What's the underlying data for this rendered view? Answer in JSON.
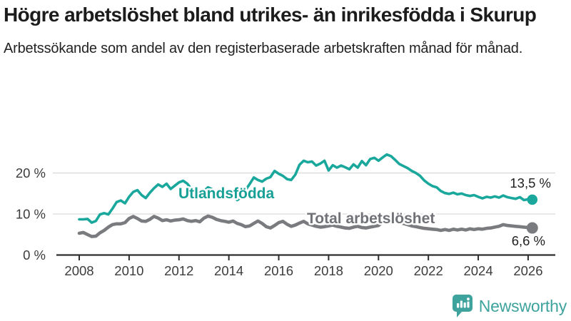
{
  "header": {
    "title": "Högre arbetslöshet bland utrikes- än inrikesfödda i Skurup",
    "subtitle": "Arbetssökande som andel av den registerbaserade arbetskraften månad för månad."
  },
  "chart_data": {
    "type": "line",
    "unit": "%",
    "grid": true,
    "legend": "inline-labels",
    "x_axis": {
      "start": 2008,
      "step_years": 0.166667,
      "end": 2026.17,
      "ticks": [
        {
          "year": 2008,
          "label": "2008"
        },
        {
          "year": 2010,
          "label": "2010"
        },
        {
          "year": 2012,
          "label": "2012"
        },
        {
          "year": 2014,
          "label": "2014"
        },
        {
          "year": 2016,
          "label": "2016"
        },
        {
          "year": 2018,
          "label": "2018"
        },
        {
          "year": 2020,
          "label": "2020"
        },
        {
          "year": 2022,
          "label": "2022"
        },
        {
          "year": 2024,
          "label": "2024"
        },
        {
          "year": 2026,
          "label": "2026"
        }
      ]
    },
    "y_axis": {
      "min": 0,
      "max": 25,
      "ticks": [
        {
          "value": 0,
          "label": "0 %"
        },
        {
          "value": 10,
          "label": "10 %"
        },
        {
          "value": 20,
          "label": "20 %"
        }
      ]
    },
    "colors": {
      "grid": "#d9d9d9",
      "axis": "#2d2d2d",
      "tick_text": "#3c3c3c",
      "value_text": "#1f1f1f"
    },
    "series": [
      {
        "name": "Utlandsfödda",
        "color": "#1aa79c",
        "label_color": "#17a096",
        "end_value": 13.5,
        "end_label": "13,5 %",
        "values": [
          8.7,
          8.7,
          8.8,
          7.9,
          8.3,
          9.9,
          10.2,
          9.9,
          11.3,
          12.9,
          13.3,
          12.6,
          14.2,
          15.4,
          15.8,
          14.6,
          13.9,
          15.2,
          16.3,
          17.2,
          16.6,
          17.4,
          16.1,
          16.9,
          17.7,
          18.1,
          17.4,
          16.1,
          14.9,
          14.6,
          15.6,
          16.5,
          16.0,
          15.2,
          15.0,
          14.6,
          15.3,
          14.4,
          13.4,
          14.1,
          15.8,
          17.3,
          18.9,
          18.3,
          17.9,
          18.6,
          19.0,
          20.5,
          19.8,
          19.3,
          18.5,
          18.3,
          19.6,
          22.0,
          23.0,
          22.6,
          22.8,
          21.8,
          22.3,
          23.0,
          20.6,
          21.9,
          21.3,
          21.8,
          21.4,
          20.9,
          22.1,
          21.3,
          22.9,
          21.9,
          23.4,
          23.7,
          23.0,
          23.8,
          24.5,
          24.1,
          23.2,
          22.2,
          21.7,
          21.2,
          20.5,
          20.0,
          19.3,
          18.2,
          17.4,
          16.8,
          16.5,
          15.6,
          15.1,
          14.9,
          15.2,
          14.8,
          15.0,
          14.6,
          14.4,
          14.6,
          14.2,
          13.8,
          14.2,
          14.0,
          14.3,
          14.0,
          14.5,
          14.1,
          13.9,
          13.7,
          14.1,
          13.4,
          13.6,
          13.5
        ]
      },
      {
        "name": "Total arbetslöshet",
        "color": "#7a7b7f",
        "label_color": "#717277",
        "end_value": 6.6,
        "end_label": "6,6 %",
        "values": [
          5.3,
          5.5,
          5.0,
          4.5,
          4.6,
          5.4,
          6.0,
          6.8,
          7.4,
          7.6,
          7.6,
          7.9,
          8.9,
          9.4,
          8.9,
          8.3,
          8.2,
          8.7,
          9.4,
          9.0,
          8.4,
          8.6,
          8.3,
          8.5,
          8.6,
          8.8,
          8.4,
          8.2,
          8.4,
          8.1,
          9.0,
          9.5,
          9.2,
          8.7,
          8.4,
          8.2,
          8.0,
          8.3,
          7.7,
          7.4,
          6.9,
          7.1,
          7.7,
          8.3,
          7.7,
          6.9,
          6.6,
          7.2,
          7.9,
          8.2,
          7.5,
          7.0,
          7.3,
          7.8,
          8.2,
          7.6,
          7.3,
          7.0,
          6.8,
          6.9,
          7.1,
          7.3,
          7.0,
          6.8,
          6.6,
          6.5,
          6.8,
          7.0,
          6.7,
          6.6,
          6.8,
          7.0,
          7.2,
          8.0,
          8.6,
          8.4,
          8.2,
          7.9,
          7.7,
          7.4,
          7.1,
          6.9,
          6.7,
          6.5,
          6.4,
          6.3,
          6.2,
          6.0,
          6.2,
          6.0,
          6.3,
          6.1,
          6.3,
          6.1,
          6.4,
          6.2,
          6.4,
          6.3,
          6.5,
          6.6,
          6.8,
          7.0,
          7.4,
          7.2,
          7.1,
          7.0,
          6.9,
          6.8,
          6.7,
          6.6
        ]
      }
    ]
  },
  "footer": {
    "brand": "Newsworthy",
    "brand_color": "#3fa39d",
    "logo_icon": "bar-chart-speech-bubble"
  }
}
